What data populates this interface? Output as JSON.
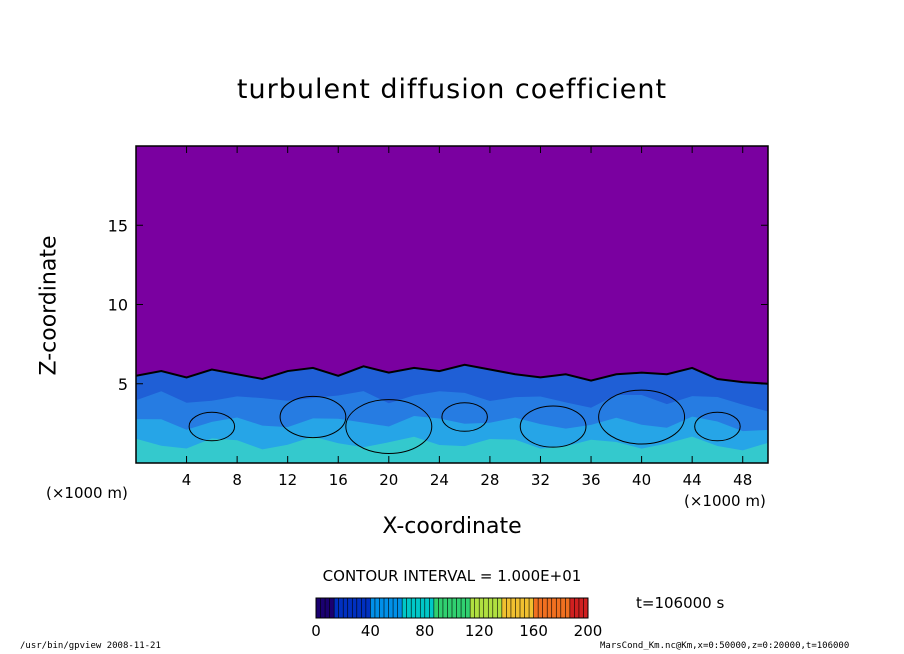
{
  "chart_data": {
    "type": "heatmap",
    "title": "turbulent diffusion coefficient",
    "xlabel": "X-coordinate",
    "ylabel": "Z-coordinate",
    "x_unit_label": "(×1000 m)",
    "x_ticks": [
      4,
      8,
      12,
      16,
      20,
      24,
      28,
      32,
      36,
      40,
      44,
      48
    ],
    "y_ticks": [
      5,
      10,
      15
    ],
    "xlim": [
      0,
      50
    ],
    "ylim": [
      0,
      20
    ],
    "contour_interval_text": "CONTOUR INTERVAL = 1.000E+01",
    "colorbar": {
      "ticks": [
        0,
        40,
        80,
        120,
        160,
        200
      ],
      "range": [
        0,
        200
      ]
    },
    "background_color": "#7a00a0",
    "turbulent_layer_top_km": [
      [
        0,
        5.5
      ],
      [
        2,
        5.8
      ],
      [
        4,
        5.4
      ],
      [
        6,
        5.9
      ],
      [
        8,
        5.6
      ],
      [
        10,
        5.3
      ],
      [
        12,
        5.8
      ],
      [
        14,
        6.0
      ],
      [
        16,
        5.5
      ],
      [
        18,
        6.1
      ],
      [
        20,
        5.7
      ],
      [
        22,
        6.0
      ],
      [
        24,
        5.8
      ],
      [
        26,
        6.2
      ],
      [
        28,
        5.9
      ],
      [
        30,
        5.6
      ],
      [
        32,
        5.4
      ],
      [
        34,
        5.6
      ],
      [
        36,
        5.2
      ],
      [
        38,
        5.6
      ],
      [
        40,
        5.7
      ],
      [
        42,
        5.6
      ],
      [
        44,
        6.0
      ],
      [
        46,
        5.3
      ],
      [
        48,
        5.1
      ],
      [
        50,
        5.0
      ]
    ],
    "time_label": "t=106000 s"
  },
  "footer": {
    "left": "/usr/bin/gpview  2008-11-21",
    "right": "MarsCond_Km.nc@Km,x=0:50000,z=0:20000,t=106000"
  }
}
